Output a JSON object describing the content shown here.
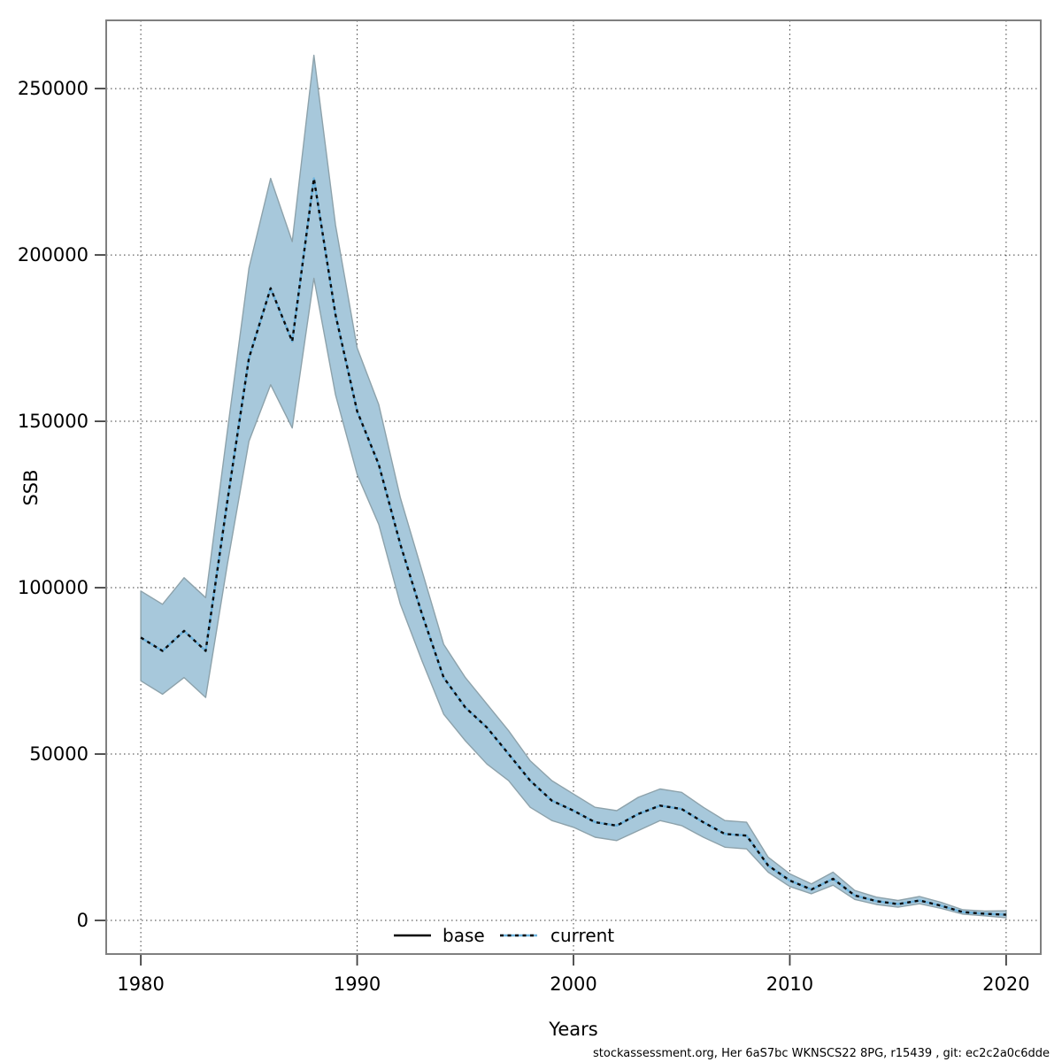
{
  "chart": {
    "footer": "stockassessment.org, Her 6aS7bc WKNSCS22 8PG, r15439 , git: ec2c2a0c6dde",
    "legend_base_label": "base",
    "legend_current_label": "current",
    "colors": {
      "ribbon_fill": "#a7c8db",
      "ribbon_edge": "#8da2ab",
      "current_line_blue": "#6db3dd",
      "current_line_dash": "#0b0b0b",
      "base_line": "#000000",
      "grid": "#3c3c3c",
      "border": "#7f7f7f",
      "tick": "#404040"
    }
  },
  "chart_data": {
    "type": "line",
    "title": "",
    "xlabel": "Years",
    "ylabel": "SSB",
    "grid": "dotted",
    "legend_position": "bottom-center-inside",
    "xlim": [
      1978.4,
      2021.6
    ],
    "ylim": [
      -10100,
      270500
    ],
    "x_ticks": [
      1980,
      1990,
      2000,
      2010,
      2020
    ],
    "y_ticks": [
      0,
      50000,
      100000,
      150000,
      200000,
      250000
    ],
    "x": [
      1980,
      1981,
      1982,
      1983,
      1984,
      1985,
      1986,
      1987,
      1988,
      1989,
      1990,
      1991,
      1992,
      1993,
      1994,
      1995,
      1996,
      1997,
      1998,
      1999,
      2000,
      2001,
      2002,
      2003,
      2004,
      2005,
      2006,
      2007,
      2008,
      2009,
      2010,
      2011,
      2012,
      2013,
      2014,
      2015,
      2016,
      2017,
      2018,
      2019,
      2020
    ],
    "series": [
      {
        "name": "base",
        "style": "solid",
        "values": [
          85000,
          81000,
          87000,
          81000,
          126000,
          169000,
          190000,
          174000,
          223000,
          182000,
          153000,
          137000,
          113000,
          92000,
          73000,
          64000,
          58000,
          50000,
          42000,
          36000,
          33000,
          29500,
          28500,
          32000,
          34500,
          33500,
          29500,
          26000,
          25500,
          16500,
          12000,
          9300,
          12500,
          7500,
          5800,
          4900,
          6000,
          4400,
          2500,
          2000,
          1700
        ]
      },
      {
        "name": "current",
        "style": "dotted",
        "values": [
          85000,
          81000,
          87000,
          81000,
          126000,
          169000,
          190000,
          174000,
          223000,
          182000,
          153000,
          137000,
          113000,
          92000,
          73000,
          64000,
          58000,
          50000,
          42000,
          36000,
          33000,
          29500,
          28500,
          32000,
          34500,
          33500,
          29500,
          26000,
          25500,
          16500,
          12000,
          9300,
          12500,
          7500,
          5800,
          4900,
          6000,
          4400,
          2500,
          2000,
          1700
        ],
        "ci_low": [
          72000,
          68000,
          73000,
          67000,
          107000,
          144000,
          161000,
          148000,
          193000,
          158000,
          134000,
          119000,
          95000,
          78000,
          62000,
          54000,
          47000,
          42000,
          34000,
          30000,
          28000,
          25000,
          24000,
          27000,
          30000,
          28500,
          25000,
          22000,
          21500,
          14500,
          10200,
          8000,
          10600,
          6300,
          4800,
          4000,
          5000,
          3600,
          1900,
          1400,
          800
        ],
        "ci_high": [
          99000,
          95000,
          103000,
          97000,
          147000,
          196000,
          223000,
          204000,
          260000,
          209000,
          172000,
          155000,
          127000,
          105000,
          83000,
          73000,
          65000,
          57000,
          48000,
          42000,
          38000,
          34000,
          33000,
          37000,
          39500,
          38500,
          34000,
          30000,
          29500,
          19000,
          14000,
          11000,
          14500,
          9000,
          7000,
          6000,
          7200,
          5400,
          3200,
          2800,
          2900
        ]
      }
    ]
  }
}
